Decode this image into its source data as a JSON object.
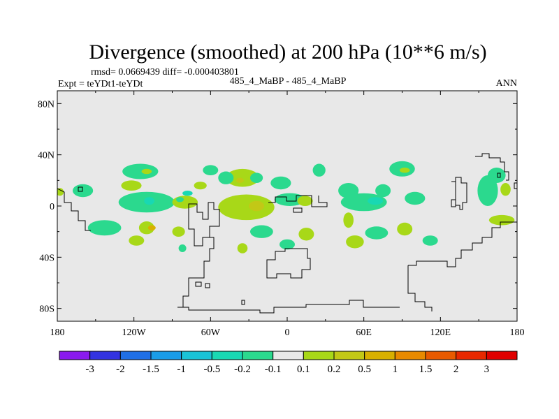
{
  "chart_data": {
    "type": "heatmap",
    "title": "Divergence (smoothed) at 200 hPa (10**6 m/s)",
    "stats_line": "rmsd= 0.0669439 diff= -0.000403801",
    "experiment_line": "Expt = teYDt1-teYDt",
    "case_line": "485_4_MaBP - 485_4_MaBP",
    "season": "ANN",
    "x_axis": {
      "range": [
        -180,
        180
      ],
      "ticks": [
        -180,
        -120,
        -60,
        0,
        60,
        120,
        180
      ],
      "tick_labels": [
        "180",
        "120W",
        "60W",
        "0",
        "60E",
        "120E",
        "180"
      ]
    },
    "y_axis": {
      "range": [
        -90,
        90
      ],
      "ticks": [
        80,
        40,
        0,
        -40,
        -80
      ],
      "tick_labels": [
        "80N",
        "40N",
        "0",
        "40S",
        "80S"
      ]
    },
    "colorbar": {
      "levels": [
        "-3",
        "-2",
        "-1.5",
        "-1",
        "-0.5",
        "-0.2",
        "-0.1",
        "0.1",
        "0.2",
        "0.5",
        "1",
        "1.5",
        "2",
        "3"
      ],
      "colors": [
        "#8a1aee",
        "#3333e0",
        "#1f6fe6",
        "#1a9ce8",
        "#1ac3d6",
        "#19d8b3",
        "#2bd98e",
        "#e8e8e8",
        "#a8d818",
        "#c2c816",
        "#d8b000",
        "#e88a00",
        "#e85a00",
        "#e82800",
        "#e00000"
      ]
    },
    "features": [
      {
        "name": "anomaly-n-pacific-west",
        "lon": -160,
        "lat": 12,
        "rlon": 8,
        "rlat": 5,
        "level": 6
      },
      {
        "name": "anomaly-n-pacific-central",
        "lon": -115,
        "lat": 27,
        "rlon": 14,
        "rlat": 6,
        "level": 6
      },
      {
        "name": "anomaly-n-pacific-central-core",
        "lon": -110,
        "lat": 27,
        "rlon": 4,
        "rlat": 2,
        "level": 8
      },
      {
        "name": "anomaly-n-pacific-south",
        "lon": -122,
        "lat": 16,
        "rlon": 8,
        "rlat": 4,
        "level": 8
      },
      {
        "name": "anomaly-eq-pacific-wide",
        "lon": -110,
        "lat": 3,
        "rlon": 22,
        "rlat": 8,
        "level": 6
      },
      {
        "name": "anomaly-eq-pacific-neg",
        "lon": -108,
        "lat": 4,
        "rlon": 4,
        "rlat": 3,
        "level": 5
      },
      {
        "name": "anomaly-eq-pacific-east-neg",
        "lon": -78,
        "lat": 10,
        "rlon": 4,
        "rlat": 2,
        "level": 5
      },
      {
        "name": "anomaly-east-pacific-eq",
        "lon": -80,
        "lat": 3,
        "rlon": 10,
        "rlat": 5,
        "level": 8
      },
      {
        "name": "anomaly-east-pacific-eq-core",
        "lon": -84,
        "lat": 5,
        "rlon": 3,
        "rlat": 2,
        "level": 6
      },
      {
        "name": "anomaly-central-america",
        "lon": -60,
        "lat": 28,
        "rlon": 6,
        "rlat": 4,
        "level": 6
      },
      {
        "name": "anomaly-central-america-south",
        "lon": -68,
        "lat": 16,
        "rlon": 5,
        "rlat": 3,
        "level": 8
      },
      {
        "name": "anomaly-n-atlantic-band",
        "lon": -35,
        "lat": 22,
        "rlon": 13,
        "rlat": 7,
        "level": 8
      },
      {
        "name": "anomaly-n-atlantic-band-core",
        "lon": -37,
        "lat": 20,
        "rlon": 3,
        "rlat": 2,
        "level": 9
      },
      {
        "name": "anomaly-n-atlantic-band-west",
        "lon": -48,
        "lat": 22,
        "rlon": 6,
        "rlat": 5,
        "level": 6
      },
      {
        "name": "anomaly-n-atlantic-band-east",
        "lon": -24,
        "lat": 22,
        "rlon": 5,
        "rlat": 4,
        "level": 6
      },
      {
        "name": "anomaly-w-africa",
        "lon": -5,
        "lat": 18,
        "rlon": 8,
        "rlat": 5,
        "level": 6
      },
      {
        "name": "anomaly-subtrop-atl-north",
        "lon": 25,
        "lat": 28,
        "rlon": 5,
        "rlat": 5,
        "level": 6
      },
      {
        "name": "anomaly-atl-eq-major",
        "lon": -32,
        "lat": -1,
        "rlon": 22,
        "rlat": 10,
        "level": 8
      },
      {
        "name": "anomaly-atl-eq-major-core",
        "lon": -24,
        "lat": 0,
        "rlon": 6,
        "rlat": 4,
        "level": 9
      },
      {
        "name": "anomaly-africa-eq-neg",
        "lon": 2,
        "lat": 5,
        "rlon": 12,
        "rlat": 5,
        "level": 6
      },
      {
        "name": "anomaly-africa-eq-pos",
        "lon": 14,
        "lat": 4,
        "rlon": 6,
        "rlat": 4,
        "level": 8
      },
      {
        "name": "anomaly-indian-ocean-north",
        "lon": 48,
        "lat": 12,
        "rlon": 8,
        "rlat": 6,
        "level": 6
      },
      {
        "name": "anomaly-indian-ocean-north-b",
        "lon": 75,
        "lat": 12,
        "rlon": 6,
        "rlat": 5,
        "level": 6
      },
      {
        "name": "anomaly-maritime-continent",
        "lon": 60,
        "lat": 3,
        "rlon": 18,
        "rlat": 7,
        "level": 6
      },
      {
        "name": "anomaly-maritime-continent-neg",
        "lon": 69,
        "lat": 4,
        "rlon": 6,
        "rlat": 3,
        "level": 5
      },
      {
        "name": "anomaly-w-pacific-north",
        "lon": 90,
        "lat": 29,
        "rlon": 10,
        "rlat": 6,
        "level": 6
      },
      {
        "name": "anomaly-w-pacific-north-core",
        "lon": 92,
        "lat": 28,
        "rlon": 4,
        "rlat": 2,
        "level": 8
      },
      {
        "name": "anomaly-w-pacific-north-b",
        "lon": 100,
        "lat": 6,
        "rlon": 8,
        "rlat": 5,
        "level": 6
      },
      {
        "name": "anomaly-south-pacific-west",
        "lon": -143,
        "lat": -17,
        "rlon": 13,
        "rlat": 6,
        "level": 6
      },
      {
        "name": "anomaly-south-pacific-central",
        "lon": -110,
        "lat": -17,
        "rlon": 6,
        "rlat": 5,
        "level": 8
      },
      {
        "name": "anomaly-south-pacific-core",
        "lon": -106,
        "lat": -17,
        "rlon": 3,
        "rlat": 2,
        "level": 10
      },
      {
        "name": "anomaly-south-pacific-east",
        "lon": -118,
        "lat": -27,
        "rlon": 6,
        "rlat": 4,
        "level": 8
      },
      {
        "name": "anomaly-south-america",
        "lon": -85,
        "lat": -20,
        "rlon": 5,
        "rlat": 4,
        "level": 8
      },
      {
        "name": "anomaly-s-pacific-east-small",
        "lon": -82,
        "lat": -33,
        "rlon": 3,
        "rlat": 3,
        "level": 6
      },
      {
        "name": "anomaly-sw-atlantic",
        "lon": -20,
        "lat": -20,
        "rlon": 9,
        "rlat": 5,
        "level": 6
      },
      {
        "name": "anomaly-s-atlantic-south",
        "lon": -35,
        "lat": -33,
        "rlon": 4,
        "rlat": 4,
        "level": 8
      },
      {
        "name": "anomaly-s-atlantic-central",
        "lon": 0,
        "lat": -30,
        "rlon": 6,
        "rlat": 4,
        "level": 6
      },
      {
        "name": "anomaly-s-indian-west",
        "lon": 15,
        "lat": -22,
        "rlon": 6,
        "rlat": 5,
        "level": 8
      },
      {
        "name": "anomaly-s-indian-central",
        "lon": 48,
        "lat": -11,
        "rlon": 4,
        "rlat": 6,
        "level": 8
      },
      {
        "name": "anomaly-s-indian-east",
        "lon": 70,
        "lat": -21,
        "rlon": 9,
        "rlat": 5,
        "level": 6
      },
      {
        "name": "anomaly-s-indian-south",
        "lon": 53,
        "lat": -28,
        "rlon": 7,
        "rlat": 5,
        "level": 8
      },
      {
        "name": "anomaly-australia-north",
        "lon": 92,
        "lat": -18,
        "rlon": 6,
        "rlat": 5,
        "level": 8
      },
      {
        "name": "anomaly-australia-east",
        "lon": 112,
        "lat": -27,
        "rlon": 6,
        "rlat": 4,
        "level": 6
      },
      {
        "name": "anomaly-w-pacific-chain",
        "lon": 157,
        "lat": 12,
        "rlon": 8,
        "rlat": 12,
        "level": 6
      },
      {
        "name": "anomaly-w-pacific-chain-north",
        "lon": 164,
        "lat": 24,
        "rlon": 7,
        "rlat": 6,
        "level": 6
      },
      {
        "name": "anomaly-sw-pacific",
        "lon": 168,
        "lat": -11,
        "rlon": 10,
        "rlat": 4,
        "level": 8
      },
      {
        "name": "anomaly-dateline-east",
        "lon": 171,
        "lat": 13,
        "rlon": 4,
        "rlat": 5,
        "level": 8
      },
      {
        "name": "anomaly-edge-west",
        "lon": -178,
        "lat": 11,
        "rlon": 3,
        "rlat": 3,
        "level": 8
      }
    ]
  }
}
